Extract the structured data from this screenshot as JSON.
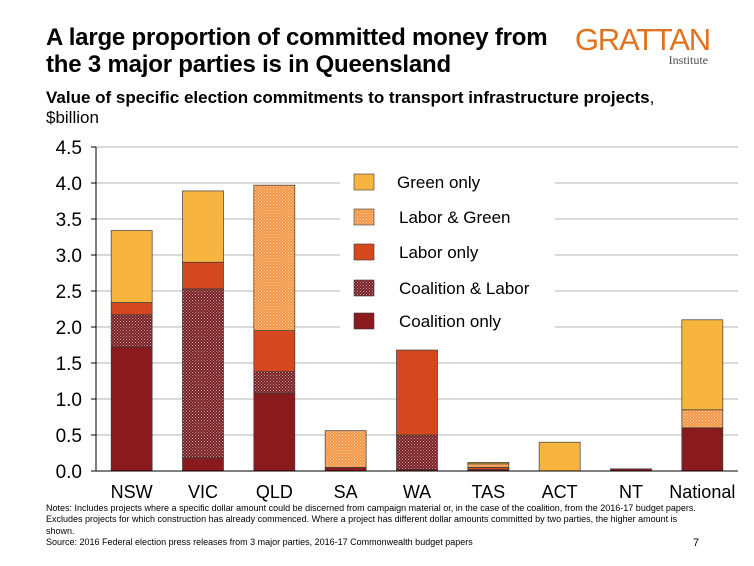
{
  "header": {
    "title": "A large proportion of committed money from the 3 major parties is in Queensland",
    "logo_text": "GRATTAN",
    "logo_subtext": "Institute",
    "subtitle_bold": "Value of specific election commitments to transport infrastructure projects",
    "subtitle_rest": ", $billion"
  },
  "footer": {
    "notes": "Notes: Includes projects where a specific dollar amount could be discerned from campaign material or, in the case of the coalition, from the 2016-17 budget papers. Excludes projects for which construction has already commenced. Where a project has different dollar amounts committed by two parties, the higher amount is shown.",
    "source": "Source: 2016 Federal election press releases from 3 major parties, 2016-17 Commonwealth budget papers",
    "page_number": "7"
  },
  "colors": {
    "coalition_only": "#8b1a1e",
    "coalition_labor": "#7a2024",
    "labor_only": "#d4471f",
    "labor_green": "#f39645",
    "green_only": "#f7b540",
    "logo": "#e0731f"
  },
  "chart_data": {
    "type": "bar",
    "stacked": true,
    "categories": [
      "NSW",
      "VIC",
      "QLD",
      "SA",
      "WA",
      "TAS",
      "ACT",
      "NT",
      "National"
    ],
    "series": [
      {
        "name": "Coalition only",
        "values": [
          1.72,
          0.18,
          1.08,
          0.05,
          0.02,
          0.02,
          0.0,
          0.03,
          0.6
        ],
        "pattern": "solid"
      },
      {
        "name": "Coalition & Labor",
        "values": [
          0.45,
          2.35,
          0.3,
          0.0,
          0.48,
          0.0,
          0.0,
          0.0,
          0.0
        ],
        "pattern": "dots"
      },
      {
        "name": "Labor only",
        "values": [
          0.17,
          0.37,
          0.57,
          0.0,
          1.18,
          0.03,
          0.0,
          0.0,
          0.0
        ],
        "pattern": "solid"
      },
      {
        "name": "Labor & Green",
        "values": [
          0.0,
          0.0,
          2.02,
          0.51,
          0.0,
          0.05,
          0.0,
          0.0,
          0.25
        ],
        "pattern": "dots"
      },
      {
        "name": "Green only",
        "values": [
          1.0,
          0.99,
          0.0,
          0.0,
          0.0,
          0.02,
          0.4,
          0.0,
          1.25
        ],
        "pattern": "solid"
      }
    ],
    "legend_order": [
      "Green only",
      "Labor & Green",
      "Labor only",
      "Coalition & Labor",
      "Coalition only"
    ],
    "legend_position": "top-center",
    "ylim": [
      0,
      4.5
    ],
    "yticks": [
      "0.0",
      "0.5",
      "1.0",
      "1.5",
      "2.0",
      "2.5",
      "3.0",
      "3.5",
      "4.0",
      "4.5"
    ],
    "grid": true,
    "xlabel": "",
    "ylabel": ""
  }
}
